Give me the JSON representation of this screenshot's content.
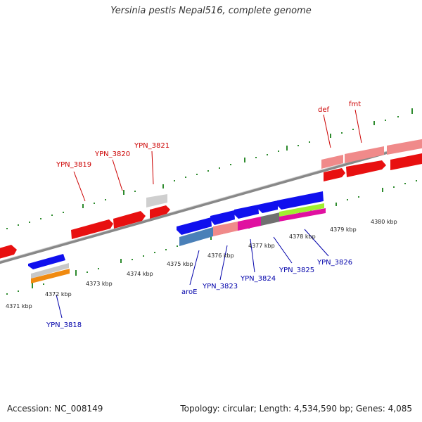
{
  "header": {
    "title": "Yersinia pestis Nepal516, complete genome"
  },
  "footer": {
    "accession": "Accession: NC_008149",
    "summary": "Topology: circular; Length: 4,534,590 bp; Genes: 4,085"
  },
  "colors": {
    "forward_label": "#cc0000",
    "reverse_label": "#0000aa",
    "backbone": "#808080",
    "tick_forward": "#228822",
    "tick_reverse": "#228822"
  },
  "axis_labels": [
    "4371 kbp",
    "4372 kbp",
    "4373 kbp",
    "4374 kbp",
    "4375 kbp",
    "4376 kbp",
    "4377 kbp",
    "4378 kbp",
    "4379 kbp",
    "4380 kbp"
  ],
  "forward_labels": [
    "YPN_3819",
    "YPN_3820",
    "YPN_3821",
    "def",
    "fmt"
  ],
  "reverse_labels": [
    "YPN_3818",
    "aroE",
    "YPN_3823",
    "YPN_3824",
    "YPN_3825",
    "YPN_3826"
  ]
}
